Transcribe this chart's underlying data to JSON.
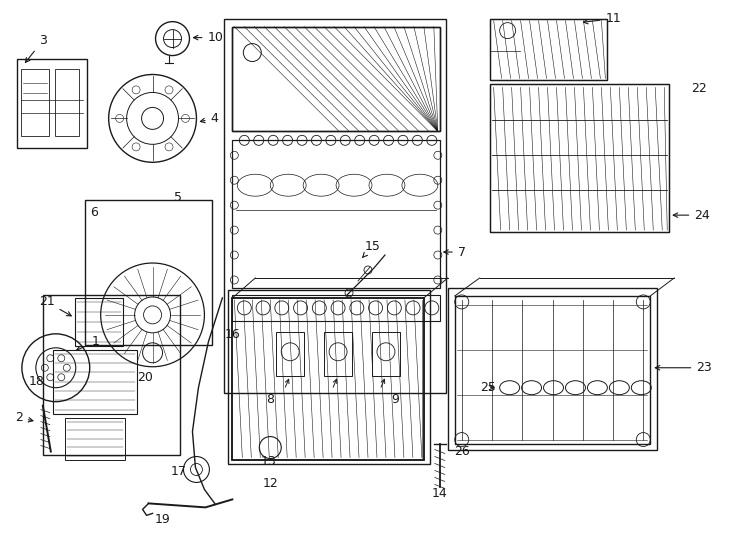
{
  "background_color": "#ffffff",
  "line_color": "#1a1a1a",
  "text_color": "#1a1a1a",
  "fig_width": 7.34,
  "fig_height": 5.4,
  "dpi": 100
}
